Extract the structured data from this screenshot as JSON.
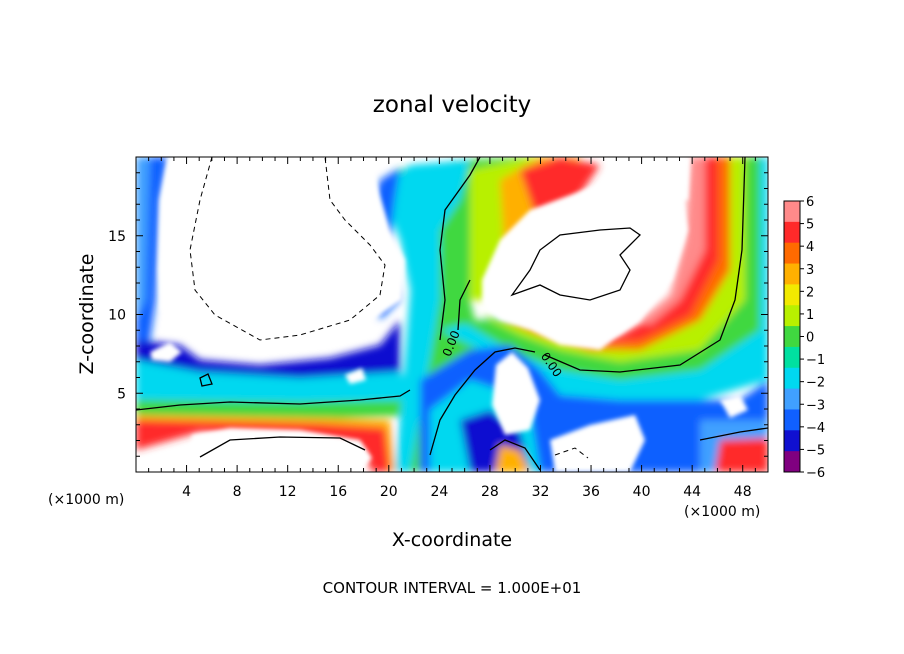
{
  "chart_data": {
    "type": "heatmap",
    "title": "zonal velocity",
    "xlabel": "X-coordinate",
    "ylabel": "Z-coordinate",
    "x_unit_left": "(×1000 m)",
    "x_unit_right": "(×1000 m)",
    "footer": "CONTOUR INTERVAL = 1.000E+01",
    "xlim": [
      0,
      50
    ],
    "ylim": [
      0,
      20
    ],
    "x_ticks": [
      4,
      8,
      12,
      16,
      20,
      24,
      28,
      32,
      36,
      40,
      44,
      48
    ],
    "y_ticks": [
      5,
      10,
      15
    ],
    "contour_labels": [
      "0.00",
      "0.00"
    ],
    "colorbar": {
      "min": -6,
      "max": 6,
      "tick_labels": [
        "6",
        "5",
        "4",
        "3",
        "2",
        "1",
        "0",
        "−1",
        "−2",
        "−3",
        "−4",
        "−5",
        "−6"
      ],
      "colors": [
        "#ff8a8a",
        "#ff2a2a",
        "#ff6a00",
        "#ffb000",
        "#f2ea00",
        "#b8f000",
        "#40d840",
        "#00e0a0",
        "#00d8f0",
        "#40a0ff",
        "#1060ff",
        "#1010d0",
        "#800080"
      ]
    }
  }
}
